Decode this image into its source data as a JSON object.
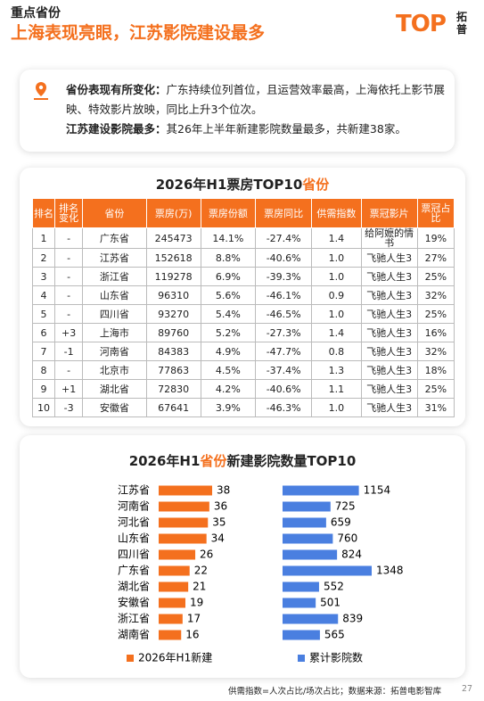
{
  "header": {
    "kicker": "重点省份",
    "title": "上海表现亮眼，江苏影院建设最多",
    "logo": "TOP",
    "logo_cn": [
      "拓",
      "普"
    ]
  },
  "notes": [
    {
      "label": "省份表现有所变化：",
      "text": "广东持续位列首位，且运营效率最高，上海依托上影节展映、特效影片放映，同比上升3个位次。"
    },
    {
      "label": "江苏建设影院最多：",
      "text": "其26年上半年新建影院数量最多，共新建38家。"
    }
  ],
  "table": {
    "title_parts": [
      "2026年H1票房TOP10",
      "省份"
    ],
    "headers": [
      "排名",
      "排名变化",
      "省份",
      "票房(万)",
      "票房份额",
      "票房同比",
      "供需指数",
      "票冠影片",
      "票冠占比"
    ],
    "rows": [
      [
        "1",
        "-",
        "广东省",
        "245473",
        "14.1%",
        "-27.4%",
        "1.4",
        "给阿嬷的情书",
        "19%"
      ],
      [
        "2",
        "-",
        "江苏省",
        "152618",
        "8.8%",
        "-40.6%",
        "1.0",
        "飞驰人生3",
        "27%"
      ],
      [
        "3",
        "-",
        "浙江省",
        "119278",
        "6.9%",
        "-39.3%",
        "1.0",
        "飞驰人生3",
        "25%"
      ],
      [
        "4",
        "-",
        "山东省",
        "96310",
        "5.6%",
        "-46.1%",
        "0.9",
        "飞驰人生3",
        "32%"
      ],
      [
        "5",
        "-",
        "四川省",
        "93270",
        "5.4%",
        "-46.5%",
        "1.0",
        "飞驰人生3",
        "25%"
      ],
      [
        "6",
        "+3",
        "上海市",
        "89760",
        "5.2%",
        "-27.3%",
        "1.4",
        "飞驰人生3",
        "16%"
      ],
      [
        "7",
        "-1",
        "河南省",
        "84383",
        "4.9%",
        "-47.7%",
        "0.8",
        "飞驰人生3",
        "32%"
      ],
      [
        "8",
        "-",
        "北京市",
        "77863",
        "4.5%",
        "-37.4%",
        "1.3",
        "飞驰人生3",
        "18%"
      ],
      [
        "9",
        "+1",
        "湖北省",
        "72830",
        "4.2%",
        "-40.6%",
        "1.1",
        "飞驰人生3",
        "25%"
      ],
      [
        "10",
        "-3",
        "安徽省",
        "67641",
        "3.9%",
        "-46.3%",
        "1.0",
        "飞驰人生3",
        "31%"
      ]
    ]
  },
  "chart_data": {
    "type": "bar",
    "title_parts": [
      "2026年H1",
      "省份",
      "新建影院数量TOP10"
    ],
    "categories": [
      "江苏省",
      "河南省",
      "河北省",
      "山东省",
      "四川省",
      "广东省",
      "湖北省",
      "安徽省",
      "浙江省",
      "湖南省"
    ],
    "series": [
      {
        "name": "2026年H1新建",
        "color": "#f4701e",
        "values": [
          38,
          36,
          35,
          34,
          26,
          22,
          21,
          19,
          17,
          16
        ]
      },
      {
        "name": "累计影院数",
        "color": "#4a7fe0",
        "values": [
          1154,
          725,
          659,
          760,
          824,
          1348,
          552,
          501,
          839,
          565
        ]
      }
    ]
  },
  "footer": {
    "note": "供需指数=人次占比/场次占比；数据来源：拓普电影智库",
    "page": "27"
  }
}
